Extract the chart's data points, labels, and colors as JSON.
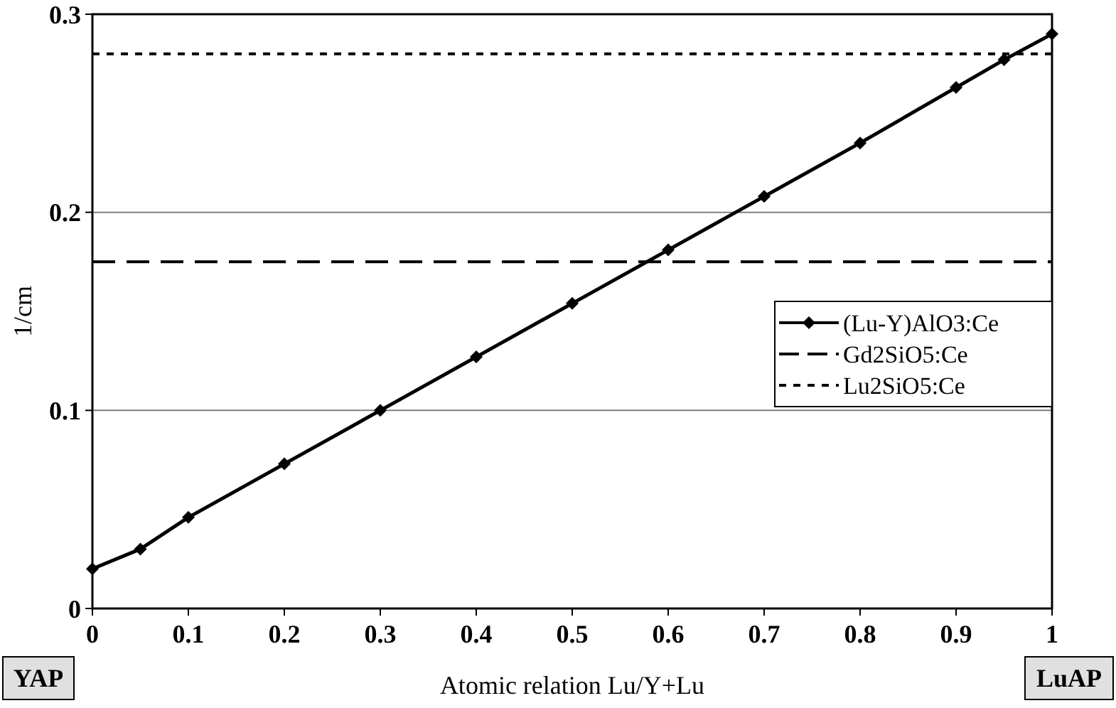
{
  "chart_data": {
    "type": "line",
    "xlabel": "Atomic relation Lu/Y+Lu",
    "ylabel": "1/cm",
    "xlim": [
      0,
      1
    ],
    "xticks": [
      0,
      0.1,
      0.2,
      0.3,
      0.4,
      0.5,
      0.6,
      0.7,
      0.8,
      0.9,
      1
    ],
    "ylim": [
      0,
      0.3
    ],
    "yticks": [
      0,
      0.1,
      0.2,
      0.3
    ],
    "grid": "y",
    "legend": "right",
    "series": [
      {
        "name": "(Lu-Y)AlO3:Ce",
        "color": "#000000",
        "marker": "diamond",
        "line_style": "solid",
        "x": [
          0,
          0.05,
          0.1,
          0.2,
          0.3,
          0.4,
          0.5,
          0.6,
          0.7,
          0.8,
          0.9,
          0.95,
          1
        ],
        "values": [
          0.02,
          0.03,
          0.046,
          0.073,
          0.1,
          0.127,
          0.154,
          0.181,
          0.208,
          0.235,
          0.263,
          0.277,
          0.29
        ]
      },
      {
        "name": "Gd2SiO5:Ce",
        "color": "#000000",
        "marker": "none",
        "line_style": "dashed",
        "x": [
          0,
          1
        ],
        "values": [
          0.175,
          0.175
        ]
      },
      {
        "name": "Lu2SiO5:Ce",
        "color": "#000000",
        "marker": "none",
        "line_style": "dotted",
        "x": [
          0,
          1
        ],
        "values": [
          0.28,
          0.28
        ]
      }
    ],
    "annotations": [
      "YAP",
      "LuAP"
    ]
  }
}
